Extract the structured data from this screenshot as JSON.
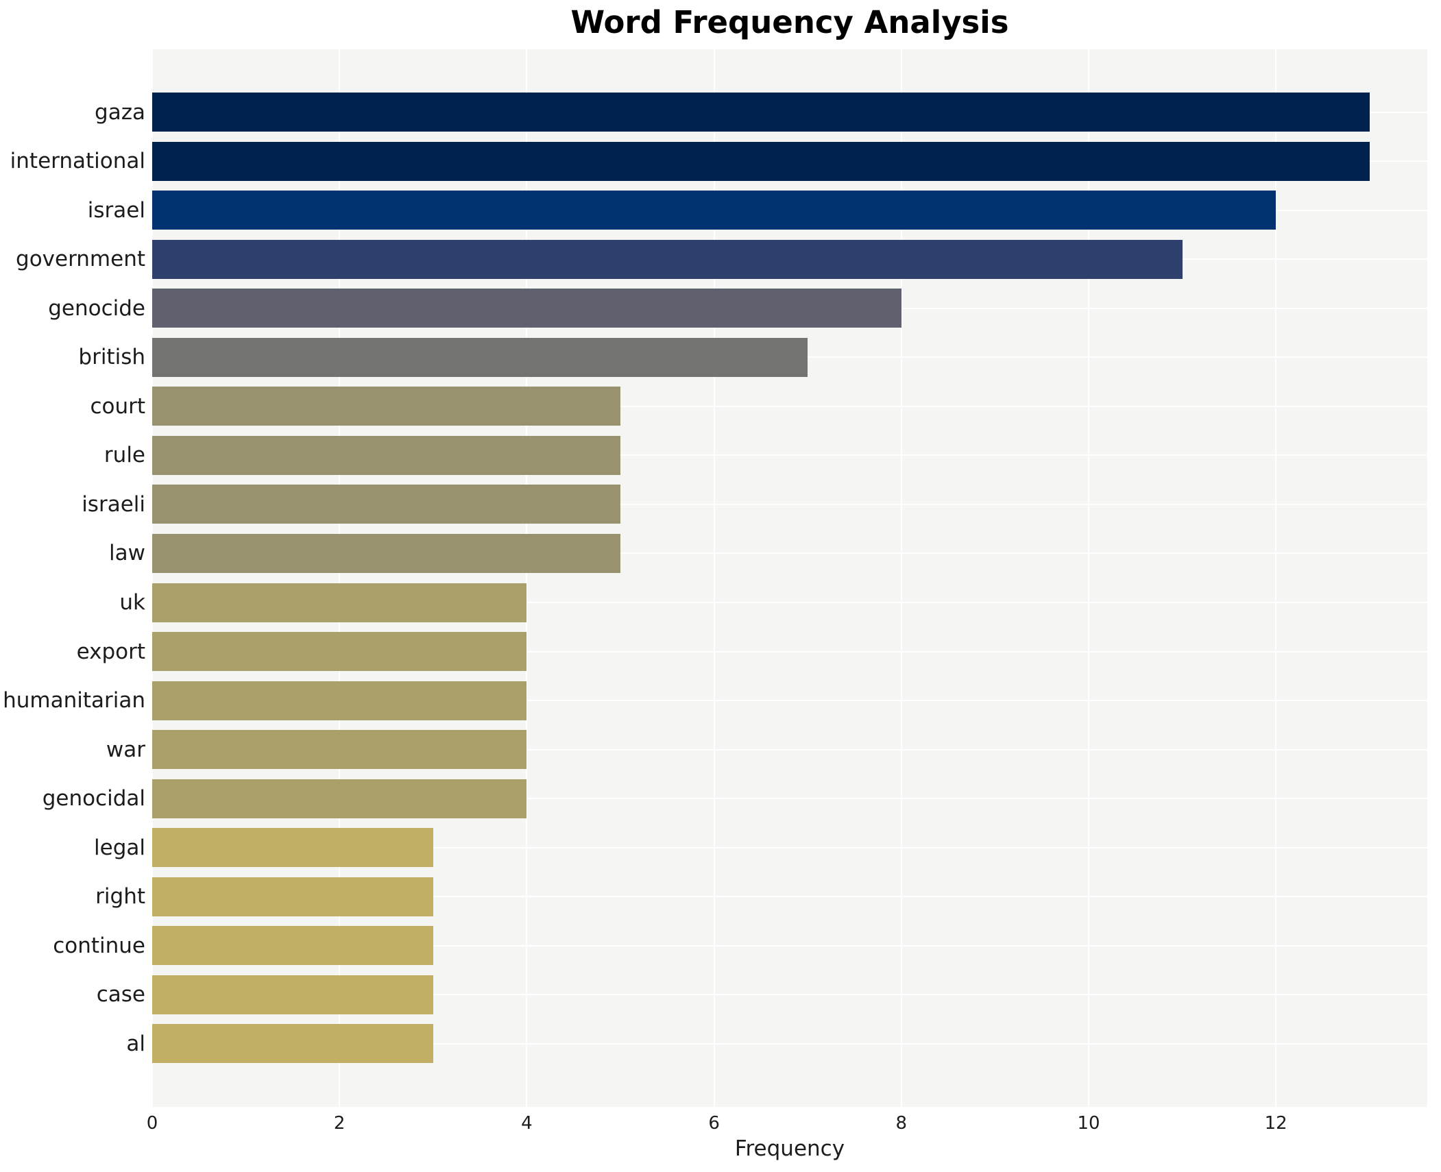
{
  "chart_data": {
    "type": "bar",
    "orientation": "horizontal",
    "title": "Word Frequency Analysis",
    "xlabel": "Frequency",
    "ylabel": "",
    "categories": [
      "gaza",
      "international",
      "israel",
      "government",
      "genocide",
      "british",
      "court",
      "rule",
      "israeli",
      "law",
      "uk",
      "export",
      "humanitarian",
      "war",
      "genocidal",
      "legal",
      "right",
      "continue",
      "case",
      "al"
    ],
    "values": [
      13,
      13,
      12,
      11,
      8,
      7,
      5,
      5,
      5,
      5,
      4,
      4,
      4,
      4,
      4,
      3,
      3,
      3,
      3,
      3
    ],
    "bar_colors": [
      "#01224e",
      "#01224e",
      "#003370",
      "#2d406e",
      "#5f626e",
      "#737372",
      "#98926f",
      "#98926f",
      "#98926f",
      "#98926f",
      "#a9a169",
      "#a9a169",
      "#a9a169",
      "#a9a169",
      "#a9a169",
      "#c1af66",
      "#c1af66",
      "#c1af66",
      "#c1af66",
      "#c1af66"
    ],
    "x_ticks": [
      0,
      2,
      4,
      6,
      8,
      10,
      12
    ],
    "xlim": [
      0,
      13.65
    ],
    "grid": true,
    "gridline_color": "#ffffff",
    "plot_background": "#f5f5f4",
    "page_background": "#ffffff",
    "legend": "none"
  }
}
